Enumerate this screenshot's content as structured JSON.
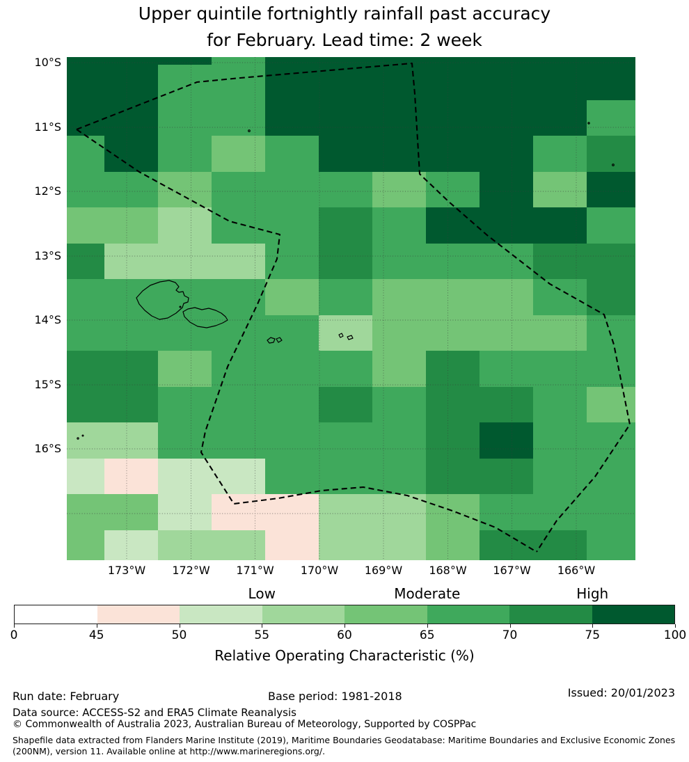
{
  "title": {
    "line1": "Upper quintile fortnightly rainfall past accuracy",
    "line2": "for February. Lead time: 2 week"
  },
  "chart_data": {
    "type": "heatmap",
    "title": "Upper quintile fortnightly rainfall past accuracy for February. Lead time: 2 week",
    "x_tick_labels": [
      "173°W",
      "172°W",
      "171°W",
      "170°W",
      "169°W",
      "168°W",
      "167°W",
      "166°W"
    ],
    "y_tick_labels": [
      "10°S",
      "11°S",
      "12°S",
      "13°S",
      "14°S",
      "15°S",
      "16°S"
    ],
    "grid_on": true,
    "legend_position": "bottom",
    "palette": [
      "#ffffff",
      "#fbe3d8",
      "#c9e7c2",
      "#a0d79b",
      "#74c476",
      "#3fa95c",
      "#238b45",
      "#00592f"
    ],
    "bin_labels": [
      "0-45",
      "45-50",
      "50-55",
      "55-60",
      "60-65",
      "65-70",
      "70-75",
      "75-100"
    ],
    "values": [
      [
        8,
        8,
        8,
        6,
        8,
        8,
        8,
        8,
        8,
        8,
        8
      ],
      [
        8,
        8,
        6,
        6,
        8,
        8,
        8,
        8,
        8,
        8,
        8
      ],
      [
        8,
        8,
        6,
        6,
        8,
        8,
        8,
        8,
        8,
        8,
        6
      ],
      [
        6,
        8,
        6,
        5,
        6,
        8,
        8,
        8,
        8,
        6,
        7
      ],
      [
        6,
        6,
        5,
        6,
        6,
        6,
        5,
        6,
        8,
        5,
        8
      ],
      [
        5,
        5,
        4,
        6,
        6,
        7,
        6,
        8,
        8,
        8,
        6
      ],
      [
        7,
        4,
        4,
        4,
        6,
        7,
        6,
        6,
        6,
        7,
        7
      ],
      [
        6,
        6,
        6,
        6,
        5,
        6,
        5,
        5,
        5,
        6,
        7
      ],
      [
        6,
        6,
        6,
        6,
        6,
        4,
        5,
        5,
        5,
        5,
        6
      ],
      [
        7,
        7,
        5,
        6,
        6,
        6,
        5,
        7,
        6,
        6,
        6
      ],
      [
        7,
        7,
        6,
        6,
        6,
        7,
        6,
        7,
        7,
        6,
        5
      ],
      [
        4,
        4,
        6,
        6,
        6,
        6,
        6,
        7,
        8,
        6,
        6
      ],
      [
        3,
        2,
        3,
        3,
        6,
        6,
        6,
        7,
        7,
        6,
        6
      ],
      [
        5,
        5,
        3,
        2,
        2,
        4,
        4,
        5,
        6,
        6,
        6
      ],
      [
        5,
        3,
        4,
        4,
        2,
        4,
        4,
        5,
        7,
        7,
        6
      ]
    ],
    "colorbar": {
      "boundaries": [
        0,
        45,
        50,
        55,
        60,
        65,
        70,
        75,
        100
      ],
      "categories": [
        "Low",
        "Moderate",
        "High"
      ],
      "label": "Relative Operating Characteristic (%)"
    }
  },
  "footer": {
    "run_date": "Run date: February",
    "base_period": "Base period: 1981-2018",
    "issued": "Issued: 20/01/2023",
    "data_source": "Data source: ACCESS-S2 and ERA5 Climate Reanalysis",
    "copyright": "© Commonwealth of Australia 2023, Australian Bureau of Meteorology, Supported by COSPPac",
    "shapefile_line1": "Shapefile data extracted from Flanders Marine Institute (2019), Maritime Boundaries Geodatabase: Maritime Boundaries and Exclusive Economic Zones",
    "shapefile_line2": "(200NM), version 11. Available online at http://www.marineregions.org/."
  }
}
